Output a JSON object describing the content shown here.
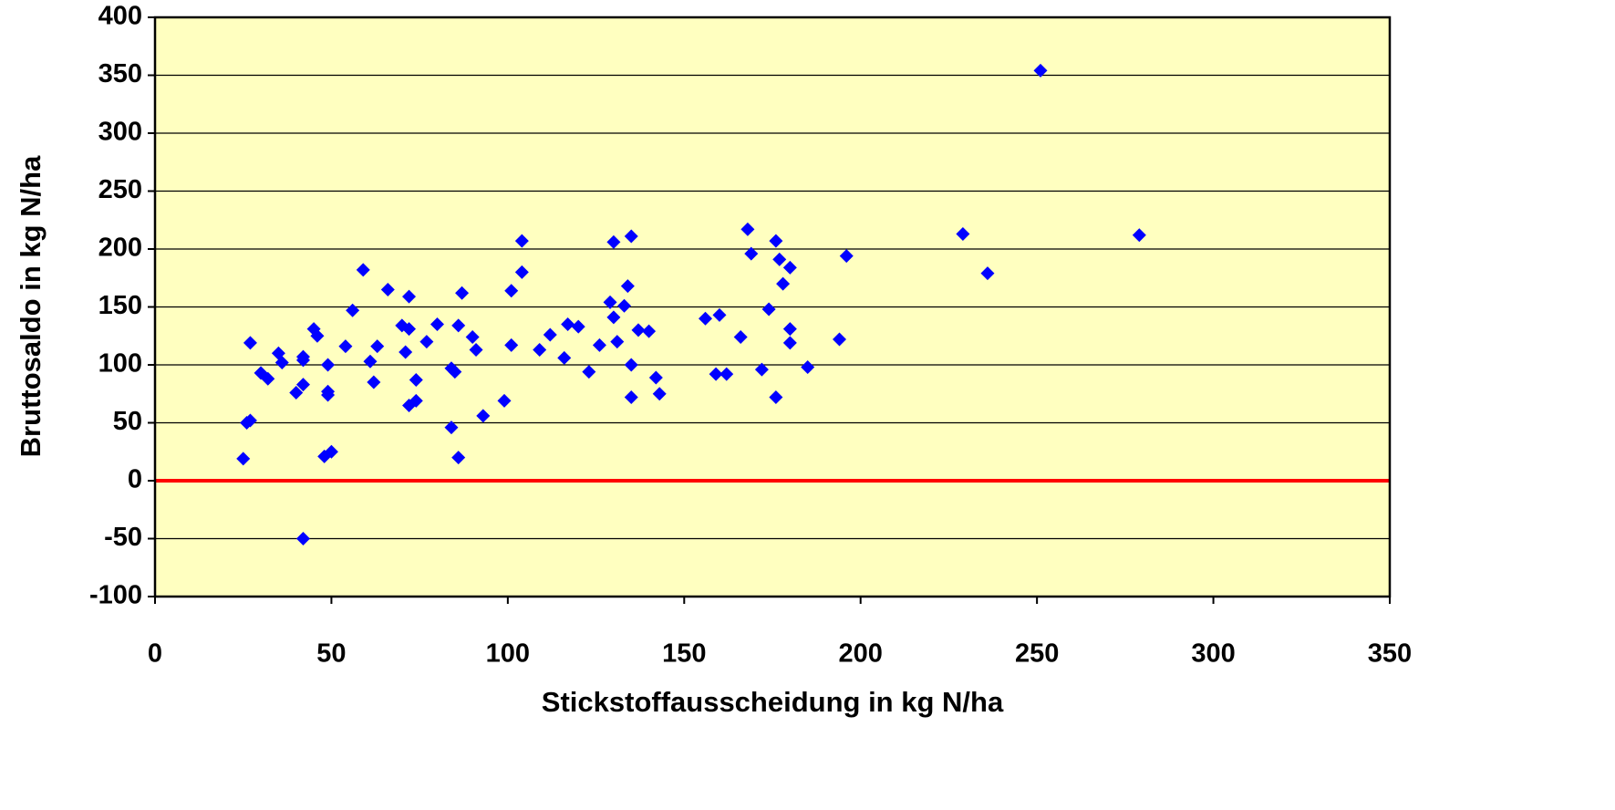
{
  "chart_data": {
    "type": "scatter",
    "xlabel": "Stickstoffausscheidung in kg N/ha",
    "ylabel": "Bruttosaldo in kg N/ha",
    "x": [
      25,
      26,
      27,
      27,
      30,
      32,
      35,
      36,
      40,
      42,
      42,
      42,
      42,
      45,
      46,
      49,
      49,
      49,
      48,
      50,
      54,
      56,
      59,
      61,
      62,
      63,
      66,
      70,
      71,
      72,
      72,
      72,
      74,
      74,
      77,
      80,
      84,
      84,
      85,
      86,
      86,
      87,
      90,
      91,
      93,
      99,
      101,
      101,
      104,
      104,
      109,
      112,
      116,
      117,
      120,
      123,
      126,
      129,
      130,
      130,
      131,
      133,
      134,
      135,
      135,
      135,
      137,
      140,
      142,
      143,
      156,
      160,
      159,
      162,
      166,
      168,
      169,
      172,
      174,
      176,
      176,
      177,
      178,
      180,
      180,
      180,
      185,
      194,
      196,
      229,
      236,
      251,
      279
    ],
    "values": [
      19,
      50,
      52,
      119,
      93,
      88,
      110,
      102,
      76,
      107,
      104,
      83,
      -50,
      131,
      125,
      100,
      77,
      74,
      21,
      25,
      116,
      147,
      182,
      103,
      85,
      116,
      165,
      134,
      111,
      159,
      65,
      131,
      87,
      69,
      120,
      135,
      46,
      97,
      94,
      134,
      20,
      162,
      124,
      113,
      56,
      69,
      164,
      117,
      180,
      207,
      113,
      126,
      106,
      135,
      133,
      94,
      117,
      154,
      206,
      141,
      120,
      151,
      168,
      211,
      100,
      72,
      130,
      129,
      89,
      75,
      140,
      143,
      92,
      92,
      124,
      217,
      196,
      96,
      148,
      72,
      207,
      191,
      170,
      131,
      119,
      184,
      98,
      122,
      194,
      213,
      179,
      354,
      212
    ],
    "color": "#0000ff",
    "background": "#ffffc0",
    "reference_lines": [
      {
        "value": 0,
        "color": "#ff0000"
      }
    ],
    "xlim": [
      0,
      350
    ],
    "xticks": [
      0,
      50,
      100,
      150,
      200,
      250,
      300,
      350
    ],
    "ylim": [
      -100,
      400
    ],
    "yticks": [
      -100,
      -50,
      0,
      50,
      100,
      150,
      200,
      250,
      300,
      350,
      400
    ],
    "grid": true
  }
}
